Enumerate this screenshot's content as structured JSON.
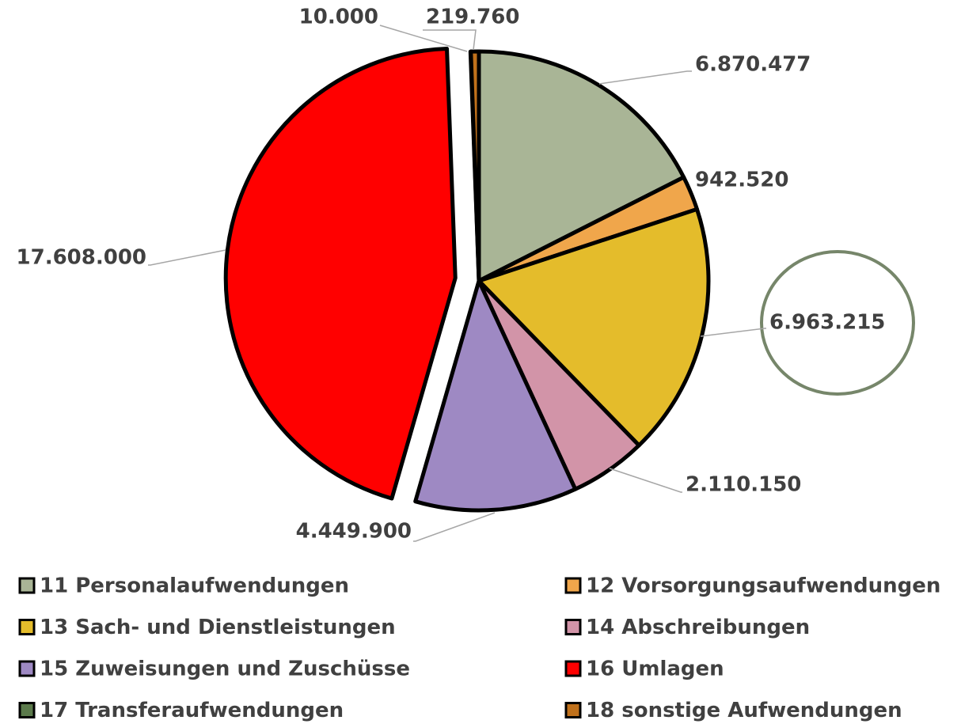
{
  "chart_data": {
    "type": "pie",
    "categories": [
      "11 Personalaufwendungen",
      "12 Vorsorgungsaufwendungen",
      "13 Sach- und Dienstleistungen",
      "14 Abschreibungen",
      "15 Zuweisungen und Zuschüsse",
      "16 Umlagen",
      "17 Transferaufwendungen",
      "18 sonstige Aufwendungen"
    ],
    "values": [
      6870477,
      942520,
      6963215,
      2110150,
      4449900,
      17608000,
      10000,
      219760
    ],
    "value_labels": [
      "6.870.477",
      "942.520",
      "6.963.215",
      "2.110.150",
      "4.449.900",
      "17.608.000",
      "10.000",
      "219.760"
    ],
    "colors": [
      "#a9b596",
      "#f0a64b",
      "#e4bc2b",
      "#d294a8",
      "#9e89c3",
      "#ff0000",
      "#5b7a4b",
      "#c0711b"
    ],
    "exploded": [
      5
    ],
    "legend": "bottom"
  }
}
